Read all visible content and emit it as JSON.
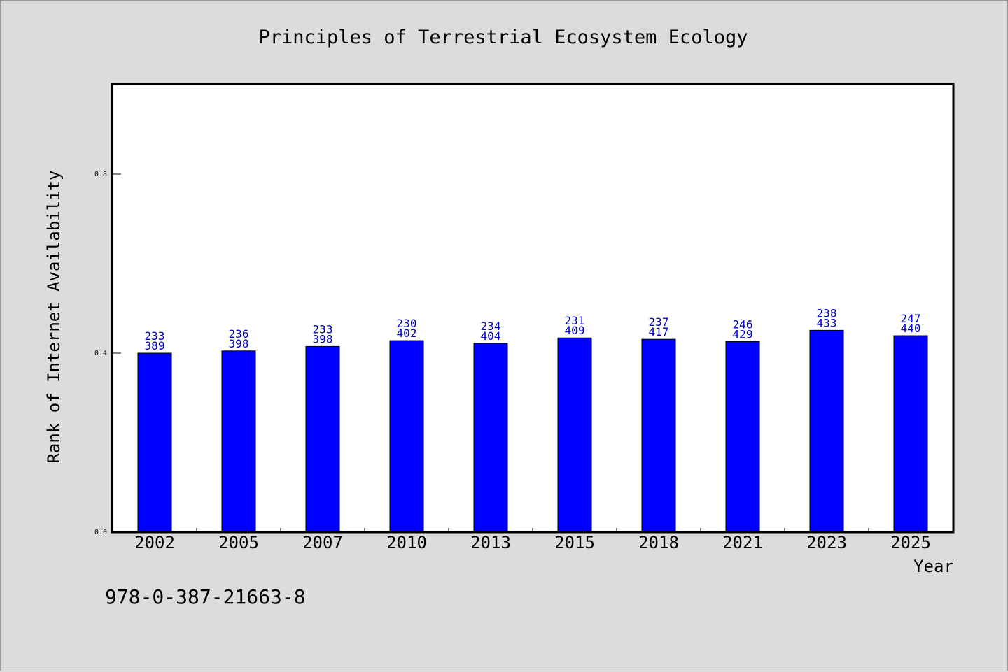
{
  "chart_data": {
    "type": "bar",
    "title": "Principles of Terrestrial Ecosystem Ecology",
    "xlabel": "Year",
    "ylabel": "Rank of Internet Availability",
    "categories": [
      "2002",
      "2005",
      "2007",
      "2010",
      "2013",
      "2015",
      "2018",
      "2021",
      "2023",
      "2025"
    ],
    "values": [
      0.4,
      0.405,
      0.415,
      0.428,
      0.422,
      0.434,
      0.431,
      0.426,
      0.451,
      0.439
    ],
    "bar_labels_top": [
      "233",
      "236",
      "233",
      "230",
      "234",
      "231",
      "237",
      "246",
      "238",
      "247"
    ],
    "bar_labels_bottom": [
      "389",
      "398",
      "398",
      "402",
      "404",
      "409",
      "417",
      "429",
      "433",
      "440"
    ],
    "ylim": [
      0,
      1.0
    ],
    "yticks": [
      0.0,
      0.4,
      0.8
    ],
    "ytick_labels": [
      "0.0",
      "0.4",
      "0.8"
    ],
    "grid": false,
    "bar_color": "#0000ff",
    "label_color": "#0000cc"
  },
  "footer": {
    "isbn": "978-0-387-21663-8"
  }
}
